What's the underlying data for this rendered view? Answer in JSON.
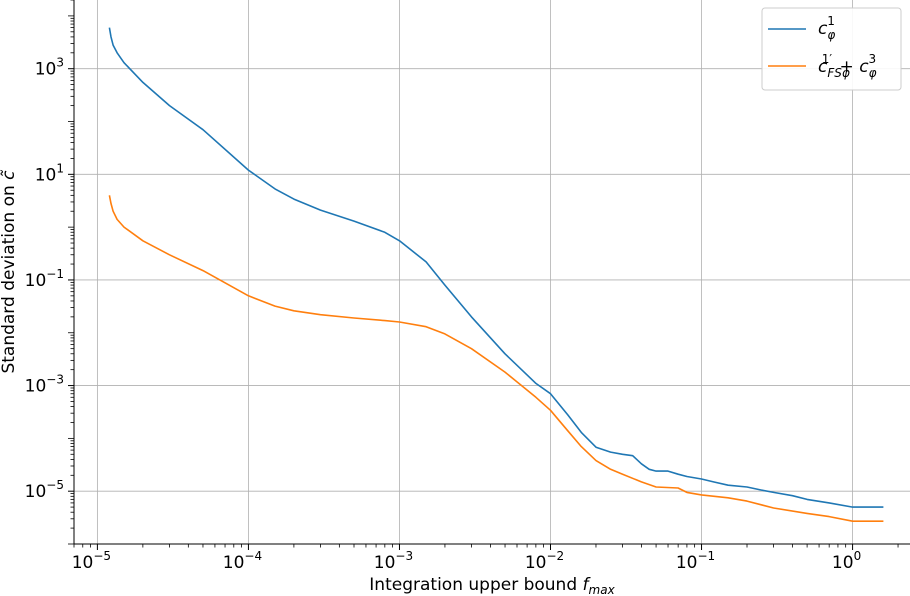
{
  "chart_data": {
    "type": "line",
    "xscale": "log",
    "yscale": "log",
    "xlim": [
      7e-06,
      2.4
    ],
    "ylim": [
      1e-06,
      20000
    ],
    "grid": true,
    "legend": {
      "placement": "top-right"
    },
    "xlabel": {
      "text": "Integration upper bound ",
      "var": "f",
      "sub": "max"
    },
    "ylabel": {
      "text": "Standard deviation on ",
      "var": "c̃"
    },
    "x_ticks": [
      {
        "value": 1e-05,
        "base": "10",
        "exp": "−5"
      },
      {
        "value": 0.0001,
        "base": "10",
        "exp": "−4"
      },
      {
        "value": 0.001,
        "base": "10",
        "exp": "−3"
      },
      {
        "value": 0.01,
        "base": "10",
        "exp": "−2"
      },
      {
        "value": 0.1,
        "base": "10",
        "exp": "−1"
      },
      {
        "value": 1,
        "base": "10",
        "exp": "0"
      }
    ],
    "y_ticks": [
      {
        "value": 1000,
        "base": "10",
        "exp": "3"
      },
      {
        "value": 10,
        "base": "10",
        "exp": "1"
      },
      {
        "value": 0.1,
        "base": "10",
        "exp": "−1"
      },
      {
        "value": 0.001,
        "base": "10",
        "exp": "−3"
      },
      {
        "value": 1e-05,
        "base": "10",
        "exp": "−5"
      }
    ],
    "series": [
      {
        "name": "c_φ^1",
        "label": {
          "main": "c",
          "sub": "φ",
          "sup": "1"
        },
        "color": "#1f77b4",
        "x": [
          1.2e-05,
          1.23e-05,
          1.27e-05,
          1.35e-05,
          1.5e-05,
          2e-05,
          3e-05,
          5e-05,
          0.0001,
          0.00015,
          0.0002,
          0.0003,
          0.0005,
          0.0008,
          0.001,
          0.0015,
          0.002,
          0.003,
          0.005,
          0.008,
          0.01,
          0.013,
          0.016,
          0.02,
          0.025,
          0.03,
          0.035,
          0.04,
          0.045,
          0.05,
          0.06,
          0.07,
          0.08,
          0.1,
          0.12,
          0.15,
          0.2,
          0.25,
          0.3,
          0.4,
          0.5,
          0.7,
          1.0,
          1.3,
          1.6
        ],
        "y": [
          6000,
          4000,
          2800,
          2000,
          1300,
          550,
          200,
          70,
          12,
          5.3,
          3.4,
          2.1,
          1.3,
          0.8,
          0.55,
          0.22,
          0.08,
          0.02,
          0.004,
          0.0011,
          0.0007,
          0.00028,
          0.00013,
          6.8e-05,
          5.5e-05,
          5e-05,
          4.7e-05,
          3.3e-05,
          2.6e-05,
          2.4e-05,
          2.4e-05,
          2.1e-05,
          1.9e-05,
          1.7e-05,
          1.5e-05,
          1.3e-05,
          1.2e-05,
          1.05e-05,
          9.5e-06,
          8.2e-06,
          7e-06,
          6e-06,
          5e-06,
          5e-06,
          5e-06
        ]
      },
      {
        "name": "c_FSφ^1′ + c_φ^3",
        "label": {
          "main": "c",
          "sub": "FSφ",
          "sup": "1′",
          "plus": " + ",
          "main2": "c",
          "sub2": "φ",
          "sup2": "3"
        },
        "color": "#ff7f0e",
        "x": [
          1.2e-05,
          1.23e-05,
          1.27e-05,
          1.35e-05,
          1.5e-05,
          2e-05,
          3e-05,
          5e-05,
          0.0001,
          0.00015,
          0.0002,
          0.0003,
          0.0005,
          0.0008,
          0.001,
          0.0015,
          0.002,
          0.003,
          0.005,
          0.008,
          0.01,
          0.013,
          0.016,
          0.02,
          0.025,
          0.03,
          0.04,
          0.05,
          0.07,
          0.08,
          0.1,
          0.15,
          0.2,
          0.3,
          0.5,
          0.7,
          1.0,
          1.3,
          1.6
        ],
        "y": [
          4,
          2.8,
          2.0,
          1.4,
          1.0,
          0.55,
          0.3,
          0.15,
          0.05,
          0.032,
          0.026,
          0.022,
          0.019,
          0.017,
          0.016,
          0.013,
          0.0095,
          0.005,
          0.0018,
          0.0006,
          0.00034,
          0.00014,
          7e-05,
          3.8e-05,
          2.6e-05,
          2.1e-05,
          1.5e-05,
          1.2e-05,
          1.15e-05,
          9.5e-06,
          8.5e-06,
          7.5e-06,
          6.5e-06,
          4.8e-06,
          3.8e-06,
          3.3e-06,
          2.7e-06,
          2.7e-06,
          2.7e-06
        ]
      }
    ]
  }
}
